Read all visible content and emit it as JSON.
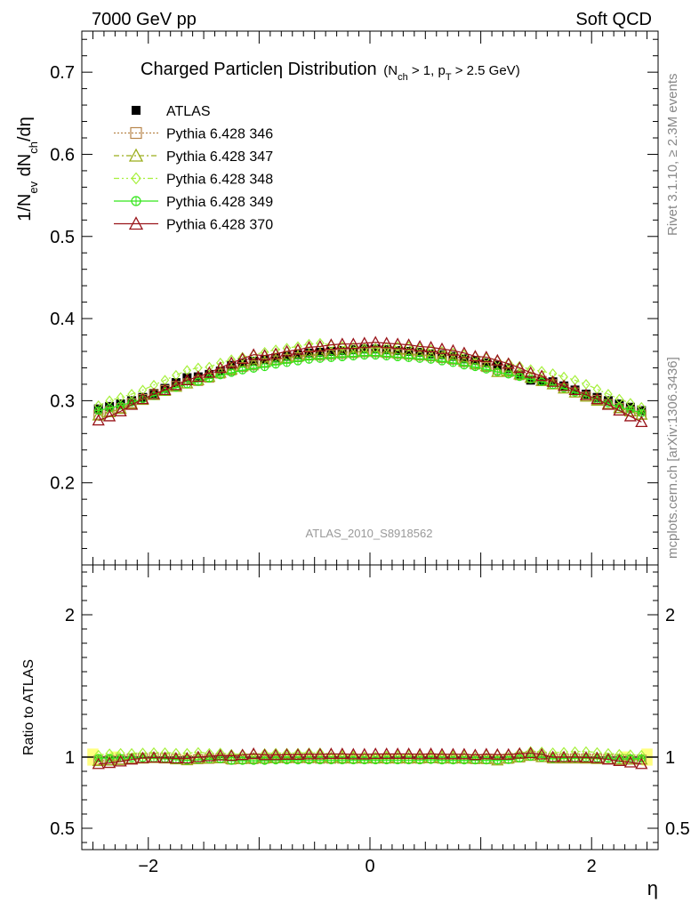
{
  "header": {
    "left": "7000 GeV pp",
    "right": "Soft QCD"
  },
  "side_text": {
    "top": "Rivet 3.1.10, ≥ 2.3M events",
    "bottom": "mcplots.cern.ch [arXiv:1306.3436]"
  },
  "colors": {
    "atlas": "#000000",
    "p346": "#b8864b",
    "p347": "#9aad1a",
    "p348": "#a6f03c",
    "p349": "#33e61a",
    "p370": "#99141a",
    "band": "#ffff80"
  },
  "chart_data": [
    {
      "type": "line",
      "title": "Charged Particleη Distribution",
      "title_suffix": "(N_ch > 1, p_T > 2.5 GeV)",
      "ylabel": "1/N_ev dN_ch/dη",
      "xlabel": "η",
      "xlim": [
        -2.6,
        2.6
      ],
      "ylim": [
        0.1,
        0.75
      ],
      "yticks": [
        0.2,
        0.3,
        0.4,
        0.5,
        0.6,
        0.7
      ],
      "ytick_labels": [
        "0.2",
        "0.3",
        "0.4",
        "0.5",
        "0.6",
        "0.7"
      ],
      "watermark": "ATLAS_2010_S8918562",
      "legend_position": "top-left",
      "x": [
        -2.45,
        -2.35,
        -2.25,
        -2.15,
        -2.05,
        -1.95,
        -1.85,
        -1.75,
        -1.65,
        -1.55,
        -1.45,
        -1.35,
        -1.25,
        -1.15,
        -1.05,
        -0.95,
        -0.85,
        -0.75,
        -0.65,
        -0.55,
        -0.45,
        -0.35,
        -0.25,
        -0.15,
        -0.05,
        0.05,
        0.15,
        0.25,
        0.35,
        0.45,
        0.55,
        0.65,
        0.75,
        0.85,
        0.95,
        1.05,
        1.15,
        1.25,
        1.35,
        1.45,
        1.55,
        1.65,
        1.75,
        1.85,
        1.95,
        2.05,
        2.15,
        2.25,
        2.35,
        2.45
      ],
      "series": [
        {
          "name": "ATLAS",
          "marker": "square-filled",
          "values": [
            0.29,
            0.293,
            0.296,
            0.3,
            0.304,
            0.309,
            0.315,
            0.322,
            0.328,
            0.329,
            0.332,
            0.336,
            0.343,
            0.346,
            0.348,
            0.35,
            0.352,
            0.354,
            0.356,
            0.358,
            0.359,
            0.36,
            0.361,
            0.362,
            0.363,
            0.363,
            0.362,
            0.361,
            0.36,
            0.359,
            0.357,
            0.356,
            0.354,
            0.351,
            0.349,
            0.346,
            0.343,
            0.339,
            0.332,
            0.325,
            0.324,
            0.323,
            0.318,
            0.313,
            0.308,
            0.304,
            0.3,
            0.296,
            0.292,
            0.288
          ]
        },
        {
          "name": "Pythia 6.428 346",
          "marker": "square-open",
          "values": [
            0.283,
            0.287,
            0.291,
            0.297,
            0.302,
            0.308,
            0.313,
            0.318,
            0.321,
            0.324,
            0.328,
            0.333,
            0.337,
            0.341,
            0.343,
            0.346,
            0.349,
            0.351,
            0.353,
            0.355,
            0.355,
            0.356,
            0.357,
            0.358,
            0.359,
            0.359,
            0.358,
            0.357,
            0.356,
            0.355,
            0.354,
            0.352,
            0.35,
            0.347,
            0.344,
            0.341,
            0.338,
            0.335,
            0.331,
            0.328,
            0.324,
            0.32,
            0.315,
            0.31,
            0.305,
            0.301,
            0.296,
            0.291,
            0.287,
            0.283
          ]
        },
        {
          "name": "Pythia 6.428 347",
          "marker": "triangle-open",
          "values": [
            0.282,
            0.286,
            0.29,
            0.296,
            0.301,
            0.307,
            0.312,
            0.317,
            0.321,
            0.325,
            0.329,
            0.334,
            0.338,
            0.342,
            0.345,
            0.347,
            0.35,
            0.352,
            0.354,
            0.356,
            0.357,
            0.358,
            0.359,
            0.359,
            0.36,
            0.36,
            0.359,
            0.358,
            0.357,
            0.356,
            0.355,
            0.353,
            0.351,
            0.348,
            0.345,
            0.342,
            0.335,
            0.336,
            0.332,
            0.328,
            0.324,
            0.32,
            0.315,
            0.31,
            0.305,
            0.3,
            0.296,
            0.291,
            0.287,
            0.283
          ]
        },
        {
          "name": "Pythia 6.428 348",
          "marker": "diamond-open",
          "values": [
            0.294,
            0.3,
            0.304,
            0.308,
            0.313,
            0.319,
            0.325,
            0.331,
            0.337,
            0.34,
            0.341,
            0.346,
            0.35,
            0.353,
            0.356,
            0.359,
            0.362,
            0.364,
            0.366,
            0.369,
            0.37,
            0.368,
            0.366,
            0.365,
            0.364,
            0.364,
            0.365,
            0.366,
            0.366,
            0.364,
            0.362,
            0.36,
            0.358,
            0.356,
            0.354,
            0.352,
            0.349,
            0.346,
            0.342,
            0.338,
            0.336,
            0.333,
            0.329,
            0.325,
            0.32,
            0.314,
            0.308,
            0.302,
            0.297,
            0.292
          ]
        },
        {
          "name": "Pythia 6.428 349",
          "marker": "circle-cross",
          "values": [
            0.288,
            0.291,
            0.294,
            0.298,
            0.302,
            0.306,
            0.311,
            0.316,
            0.32,
            0.323,
            0.327,
            0.331,
            0.334,
            0.337,
            0.339,
            0.341,
            0.344,
            0.346,
            0.348,
            0.35,
            0.351,
            0.352,
            0.353,
            0.354,
            0.355,
            0.355,
            0.354,
            0.353,
            0.352,
            0.351,
            0.35,
            0.348,
            0.346,
            0.343,
            0.341,
            0.338,
            0.335,
            0.332,
            0.329,
            0.326,
            0.323,
            0.319,
            0.315,
            0.31,
            0.306,
            0.301,
            0.297,
            0.292,
            0.289,
            0.285
          ]
        },
        {
          "name": "Pythia 6.428 370",
          "marker": "triangle-open",
          "values": [
            0.276,
            0.281,
            0.287,
            0.295,
            0.302,
            0.308,
            0.313,
            0.319,
            0.325,
            0.329,
            0.334,
            0.34,
            0.346,
            0.351,
            0.356,
            0.355,
            0.357,
            0.36,
            0.362,
            0.365,
            0.366,
            0.368,
            0.369,
            0.369,
            0.37,
            0.371,
            0.37,
            0.369,
            0.368,
            0.366,
            0.365,
            0.363,
            0.361,
            0.358,
            0.354,
            0.353,
            0.349,
            0.345,
            0.34,
            0.334,
            0.33,
            0.323,
            0.318,
            0.313,
            0.307,
            0.302,
            0.295,
            0.288,
            0.281,
            0.274
          ]
        }
      ]
    },
    {
      "type": "line",
      "ylabel": "Ratio to ATLAS",
      "xlabel": "η",
      "xlim": [
        -2.6,
        2.6
      ],
      "ylim": [
        0.35,
        2.35
      ],
      "yticks": [
        0.5,
        1,
        2
      ],
      "ytick_labels": [
        "0.5",
        "1",
        "2"
      ],
      "xticks": [
        -2,
        0,
        2
      ],
      "xtick_labels": [
        "−2",
        "0",
        "2"
      ],
      "reference_band": {
        "x": [
          -2.5,
          -2.3,
          2.3,
          2.5
        ],
        "half_width": [
          0.06,
          0.04,
          0.04,
          0.06
        ]
      }
    }
  ]
}
